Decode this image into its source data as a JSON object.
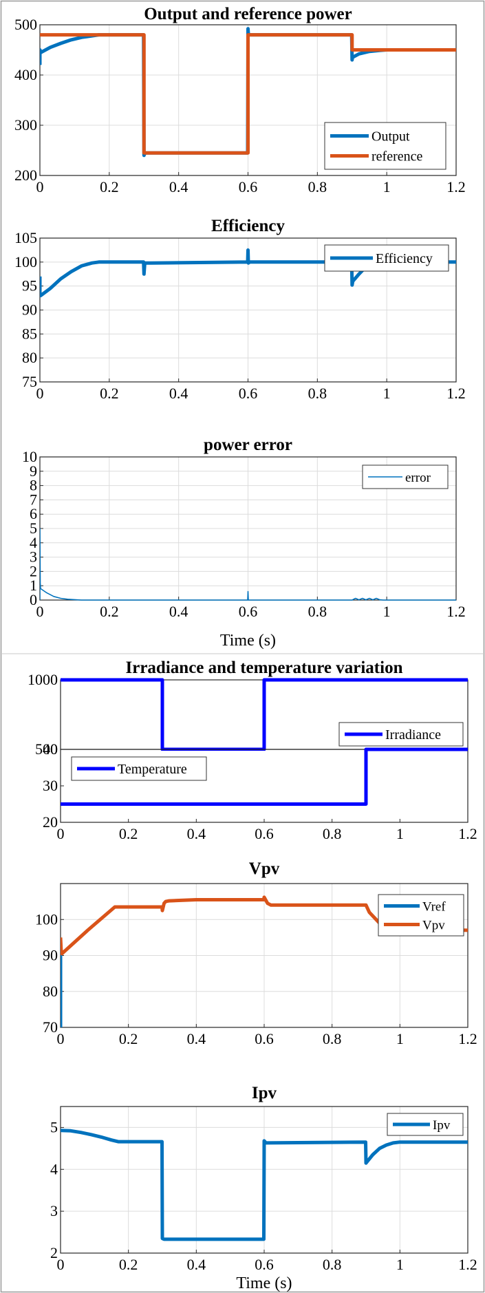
{
  "colors": {
    "blue": "#0072BD",
    "orange": "#D95319",
    "pure_blue": "#0000FF",
    "axes": "#262626",
    "grid": "#dcdcdc"
  },
  "chart_data": [
    {
      "type": "line",
      "title": "Output and reference power",
      "xlabel": "",
      "ylabel": "",
      "xlim": [
        0,
        1.2
      ],
      "ylim": [
        200,
        500
      ],
      "xticks": [
        "0",
        "0.2",
        "0.4",
        "0.6",
        "0.8",
        "1",
        "1.2"
      ],
      "yticks": [
        "200",
        "300",
        "400",
        "500"
      ],
      "grid": true,
      "legend": {
        "placement": "bottom-right"
      },
      "series": [
        {
          "name": "Output",
          "color": "#0072BD",
          "x": [
            0,
            0,
            0.003,
            0.03,
            0.06,
            0.09,
            0.12,
            0.15,
            0.17,
            0.299,
            0.3,
            0.301,
            0.305,
            0.599,
            0.6,
            0.601,
            0.605,
            0.899,
            0.9,
            0.901,
            0.92,
            0.95,
            0.98,
            1.0,
            1.2
          ],
          "y": [
            420,
            450,
            445,
            455,
            463,
            470,
            475,
            478,
            480,
            480,
            240,
            242,
            245,
            245,
            492,
            482,
            480,
            480,
            430,
            435,
            442,
            447,
            449,
            450,
            450
          ]
        },
        {
          "name": "reference",
          "color": "#D95319",
          "x": [
            0,
            0.3,
            0.3,
            0.6,
            0.6,
            0.9,
            0.9,
            1.2
          ],
          "y": [
            480,
            480,
            245,
            245,
            480,
            480,
            450,
            450
          ]
        }
      ]
    },
    {
      "type": "line",
      "title": "Efficiency",
      "xlabel": "",
      "ylabel": "",
      "xlim": [
        0,
        1.2
      ],
      "ylim": [
        75,
        105
      ],
      "xticks": [
        "0",
        "0.2",
        "0.4",
        "0.6",
        "0.8",
        "1",
        "1.2"
      ],
      "yticks": [
        "75",
        "80",
        "85",
        "90",
        "95",
        "100",
        "105"
      ],
      "grid": true,
      "legend": {
        "placement": "top-right"
      },
      "series": [
        {
          "name": "Efficiency",
          "color": "#0072BD",
          "x": [
            0,
            0,
            0.002,
            0.03,
            0.06,
            0.09,
            0.12,
            0.15,
            0.17,
            0.299,
            0.3,
            0.302,
            0.304,
            0.32,
            0.599,
            0.6,
            0.601,
            0.605,
            0.899,
            0.9,
            0.902,
            0.92,
            0.94,
            0.96,
            1.2
          ],
          "y": [
            97,
            93,
            93,
            94.5,
            96.5,
            98,
            99.2,
            99.8,
            100,
            100,
            97.5,
            99.5,
            99.8,
            99.8,
            100,
            102.5,
            99.8,
            100,
            100,
            95.2,
            96,
            97.5,
            99,
            100,
            100
          ]
        }
      ]
    },
    {
      "type": "line",
      "title": "power error",
      "xlabel": "Time (s)",
      "ylabel": "",
      "xlim": [
        0,
        1.2
      ],
      "ylim": [
        0,
        10
      ],
      "xticks": [
        "0",
        "0.2",
        "0.4",
        "0.6",
        "0.8",
        "1",
        "1.2"
      ],
      "yticks": [
        "0",
        "1",
        "2",
        "3",
        "4",
        "5",
        "6",
        "7",
        "8",
        "9",
        "10"
      ],
      "grid": true,
      "legend": {
        "placement": "top-right"
      },
      "series": [
        {
          "name": "error",
          "color": "#0072BD",
          "x": [
            0,
            0,
            0.001,
            0.002,
            0.02,
            0.04,
            0.06,
            0.08,
            0.1,
            0.12,
            0.599,
            0.6,
            0.601,
            0.9,
            0.91,
            0.92,
            0.93,
            0.94,
            0.95,
            0.96,
            0.97,
            0.98,
            0.99,
            1.2
          ],
          "y": [
            0,
            5,
            1.2,
            0.8,
            0.5,
            0.25,
            0.12,
            0.06,
            0.03,
            0,
            0,
            0.6,
            0,
            0,
            0.12,
            0.02,
            0.12,
            0.02,
            0.12,
            0.02,
            0.12,
            0.02,
            0,
            0
          ]
        }
      ]
    },
    {
      "type": "line",
      "title": "Irradiance and temperature variation",
      "xlabel": "",
      "ylabel": "",
      "xlim": [
        0,
        1.2
      ],
      "ylim": [
        500,
        1000
      ],
      "xticks": [],
      "yticks": [
        "500",
        "1000"
      ],
      "grid": false,
      "legend": {
        "placement": "bottom-right"
      },
      "series": [
        {
          "name": "Irradiance",
          "color": "#0000FF",
          "x": [
            0,
            0.3,
            0.3,
            0.6,
            0.6,
            1.2
          ],
          "y": [
            1000,
            1000,
            500,
            500,
            1000,
            1000
          ]
        }
      ]
    },
    {
      "type": "line",
      "title": "",
      "xlabel": "",
      "ylabel": "",
      "xlim": [
        0,
        1.2
      ],
      "ylim": [
        20,
        40
      ],
      "xticks": [
        "0",
        "0.2",
        "0.4",
        "0.6",
        "0.8",
        "1",
        "1.2"
      ],
      "yticks": [
        "20",
        "30",
        "40"
      ],
      "grid": false,
      "legend": {
        "placement": "top-left"
      },
      "series": [
        {
          "name": "Temperature",
          "color": "#0000FF",
          "x": [
            0,
            0.9,
            0.9,
            1.2
          ],
          "y": [
            25,
            25,
            40,
            40
          ]
        }
      ]
    },
    {
      "type": "line",
      "title": "Vpv",
      "xlabel": "",
      "ylabel": "",
      "xlim": [
        0,
        1.2
      ],
      "ylim": [
        70,
        110
      ],
      "xticks": [
        "0",
        "0.2",
        "0.4",
        "0.6",
        "0.8",
        "1",
        "1.2"
      ],
      "yticks": [
        "70",
        "80",
        "90",
        "100"
      ],
      "grid": true,
      "legend": {
        "placement": "top-right"
      },
      "series": [
        {
          "name": "Vref",
          "color": "#0072BD",
          "x": [
            0,
            0,
            0.003,
            0.006
          ],
          "y": [
            70,
            90,
            91,
            91
          ]
        },
        {
          "name": "Vpv",
          "color": "#D95319",
          "x": [
            0,
            0.002,
            0.004,
            0.08,
            0.16,
            0.17,
            0.299,
            0.3,
            0.305,
            0.31,
            0.32,
            0.4,
            0.5,
            0.599,
            0.6,
            0.61,
            0.62,
            0.7,
            0.8,
            0.9,
            0.91,
            0.94,
            0.97,
            1.0,
            1.1,
            1.2
          ],
          "y": [
            95,
            91,
            90.5,
            97,
            103.5,
            103.5,
            103.5,
            102.5,
            104.5,
            105,
            105.2,
            105.5,
            105.5,
            105.5,
            106.2,
            104.5,
            104,
            104,
            104,
            104,
            102,
            99,
            98,
            97.5,
            97.2,
            97
          ]
        }
      ]
    },
    {
      "type": "line",
      "title": "Ipv",
      "xlabel": "Time (s)",
      "ylabel": "",
      "xlim": [
        0,
        1.2
      ],
      "ylim": [
        2,
        5.5
      ],
      "xticks": [
        "0",
        "0.2",
        "0.4",
        "0.6",
        "0.8",
        "1",
        "1.2"
      ],
      "yticks": [
        "2",
        "3",
        "4",
        "5"
      ],
      "grid": true,
      "legend": {
        "placement": "top-right"
      },
      "series": [
        {
          "name": "Ipv",
          "color": "#0072BD",
          "x": [
            0,
            0.03,
            0.06,
            0.09,
            0.12,
            0.15,
            0.17,
            0.299,
            0.3,
            0.305,
            0.599,
            0.6,
            0.605,
            0.899,
            0.9,
            0.905,
            0.92,
            0.94,
            0.96,
            0.98,
            1.0,
            1.2
          ],
          "y": [
            4.93,
            4.92,
            4.88,
            4.83,
            4.77,
            4.7,
            4.66,
            4.66,
            2.35,
            2.33,
            2.33,
            4.68,
            4.63,
            4.65,
            4.15,
            4.2,
            4.35,
            4.5,
            4.58,
            4.63,
            4.65,
            4.65
          ]
        }
      ]
    }
  ]
}
